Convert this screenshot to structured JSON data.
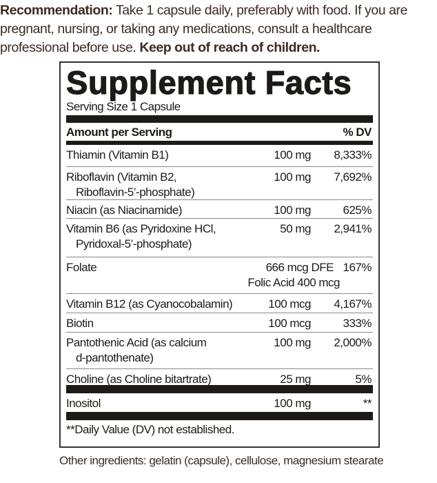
{
  "recommendation": {
    "label": "Recommendation:",
    "text": " Take 1 capsule daily, preferably with food. If you are pregnant, nursing, or taking any medications, consult a healthcare professional before use. ",
    "warning": "Keep out of reach of children."
  },
  "panel": {
    "title": "Supplement Facts",
    "serving_size": "Serving Size 1 Capsule",
    "header": {
      "amount": "Amount per Serving",
      "dv": "% DV"
    },
    "rows": [
      {
        "name": "Thiamin (Vitamin B1)",
        "name2": "",
        "amount": "100 mg",
        "dv": "8,333%"
      },
      {
        "name": "Riboflavin (Vitamin B2,",
        "name2": "Riboflavin-5’-phosphate)",
        "amount": "100 mg",
        "dv": "7,692%"
      },
      {
        "name": "Niacin (as Niacinamide)",
        "name2": "",
        "amount": "100 mg",
        "dv": "625%"
      },
      {
        "name": "Vitamin B6 (as Pyridoxine HCl,",
        "name2": "Pyridoxal-5’-phosphate)",
        "amount": "50 mg",
        "dv": "2,941%"
      },
      {
        "name": "Folate",
        "name2": "",
        "amount": "666 mcg DFE",
        "sub": "Folic Acid 400 mcg",
        "dv": "167%"
      },
      {
        "name": "Vitamin B12 (as Cyanocobalamin)",
        "name2": "",
        "amount": "100 mcg",
        "dv": "4,167%"
      },
      {
        "name": "Biotin",
        "name2": "",
        "amount": "100 mcg",
        "dv": "333%"
      },
      {
        "name": "Pantothenic Acid (as calcium",
        "name2": "d-pantothenate)",
        "amount": "100 mg",
        "dv": "2,000%"
      },
      {
        "name": "Choline (as Choline bitartrate)",
        "name2": "",
        "amount": "25 mg",
        "dv": "5%"
      },
      {
        "name": "Inositol",
        "name2": "",
        "amount": "100 mg",
        "dv": "**"
      }
    ],
    "footnote": "**Daily Value (DV) not established."
  },
  "other_ingredients": "Other ingredients: gelatin (capsule), cellulose, magnesium stearate"
}
